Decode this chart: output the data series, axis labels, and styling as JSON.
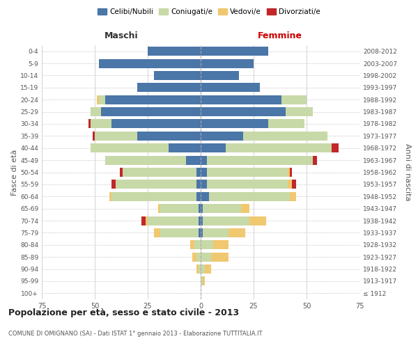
{
  "age_groups": [
    "100+",
    "95-99",
    "90-94",
    "85-89",
    "80-84",
    "75-79",
    "70-74",
    "65-69",
    "60-64",
    "55-59",
    "50-54",
    "45-49",
    "40-44",
    "35-39",
    "30-34",
    "25-29",
    "20-24",
    "15-19",
    "10-14",
    "5-9",
    "0-4"
  ],
  "birth_years": [
    "≤ 1912",
    "1913-1917",
    "1918-1922",
    "1923-1927",
    "1928-1932",
    "1933-1937",
    "1938-1942",
    "1943-1947",
    "1948-1952",
    "1953-1957",
    "1958-1962",
    "1963-1967",
    "1968-1972",
    "1973-1977",
    "1978-1982",
    "1983-1987",
    "1988-1992",
    "1993-1997",
    "1998-2002",
    "2003-2007",
    "2008-2012"
  ],
  "colors": {
    "celibi": "#4b76a8",
    "coniugati": "#c8d9a8",
    "vedovi": "#f0c870",
    "divorziati": "#c0282a"
  },
  "maschi": {
    "celibi": [
      0,
      0,
      0,
      0,
      0,
      1,
      1,
      1,
      2,
      2,
      2,
      7,
      15,
      30,
      42,
      47,
      45,
      30,
      22,
      48,
      25
    ],
    "coniugati": [
      0,
      0,
      1,
      2,
      3,
      18,
      24,
      18,
      40,
      38,
      35,
      38,
      37,
      20,
      10,
      5,
      3,
      0,
      0,
      0,
      0
    ],
    "vedovi": [
      0,
      0,
      1,
      2,
      2,
      3,
      1,
      1,
      1,
      0,
      0,
      0,
      0,
      0,
      0,
      0,
      1,
      0,
      0,
      0,
      0
    ],
    "divorziati": [
      0,
      0,
      0,
      0,
      0,
      0,
      2,
      0,
      0,
      2,
      1,
      0,
      0,
      1,
      1,
      0,
      0,
      0,
      0,
      0,
      0
    ]
  },
  "femmine": {
    "celibi": [
      0,
      0,
      0,
      0,
      0,
      1,
      1,
      1,
      4,
      3,
      3,
      3,
      12,
      20,
      32,
      40,
      38,
      28,
      18,
      25,
      32
    ],
    "coniugati": [
      0,
      1,
      2,
      5,
      6,
      12,
      22,
      18,
      38,
      38,
      38,
      50,
      50,
      40,
      17,
      13,
      12,
      0,
      0,
      0,
      0
    ],
    "vedovi": [
      0,
      1,
      3,
      8,
      7,
      8,
      8,
      4,
      3,
      2,
      1,
      0,
      0,
      0,
      0,
      0,
      0,
      0,
      0,
      0,
      0
    ],
    "divorziati": [
      0,
      0,
      0,
      0,
      0,
      0,
      0,
      0,
      0,
      2,
      1,
      2,
      3,
      0,
      0,
      0,
      0,
      0,
      0,
      0,
      0
    ]
  },
  "title": "Popolazione per età, sesso e stato civile - 2013",
  "subtitle": "COMUNE DI OMIGNANO (SA) - Dati ISTAT 1° gennaio 2013 - Elaborazione TUTTITALIA.IT",
  "xlabel_maschi": "Maschi",
  "xlabel_femmine": "Femmine",
  "ylabel": "Fasce di età",
  "ylabel2": "Anni di nascita",
  "legend_labels": [
    "Celibi/Nubili",
    "Coniugati/e",
    "Vedovi/e",
    "Divorziati/e"
  ],
  "xlim": 75,
  "background_color": "#ffffff",
  "grid_color": "#cccccc"
}
